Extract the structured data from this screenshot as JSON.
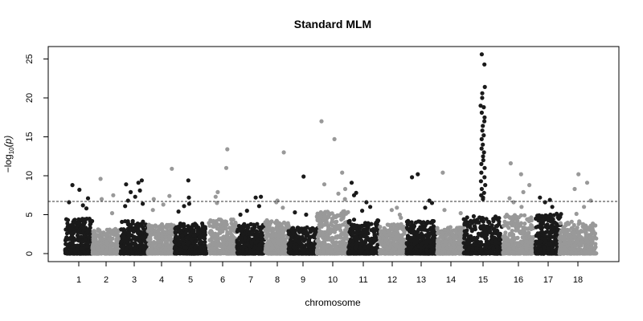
{
  "chart_data": {
    "type": "scatter",
    "title": "Standard MLM",
    "xlabel": "chromosome",
    "ylabel": "−log10(p)",
    "ylabel_parts": {
      "prefix": "−log",
      "subscript": "10",
      "suffix": "(p)"
    },
    "ylim": [
      0,
      27
    ],
    "yticks": [
      0,
      5,
      10,
      15,
      20,
      25
    ],
    "threshold": 6.7,
    "threshold_style": "dashed",
    "grid": false,
    "legend": "none",
    "colors": {
      "odd_chromosomes": "#1a1a1a",
      "even_chromosomes": "#999999",
      "threshold": "#333333"
    },
    "chromosomes": [
      {
        "label": "1",
        "bulk_max": 4.5,
        "highlights": [
          8.8,
          8.2,
          7.1,
          6.6,
          6.2,
          5.8
        ]
      },
      {
        "label": "2",
        "bulk_max": 3.3,
        "highlights": [
          9.6,
          7.5,
          7.0,
          5.2
        ]
      },
      {
        "label": "3",
        "bulk_max": 4.2,
        "highlights": [
          9.4,
          9.1,
          8.9,
          8.1,
          7.9,
          7.3,
          6.8,
          6.4,
          6.1
        ]
      },
      {
        "label": "4",
        "bulk_max": 3.8,
        "highlights": [
          10.9,
          7.4,
          7.0,
          6.3,
          5.6
        ]
      },
      {
        "label": "5",
        "bulk_max": 3.9,
        "highlights": [
          9.4,
          7.2,
          6.4,
          6.1,
          5.4
        ]
      },
      {
        "label": "6",
        "bulk_max": 4.4,
        "highlights": [
          13.4,
          11.0,
          7.9,
          7.3,
          6.5
        ]
      },
      {
        "label": "7",
        "bulk_max": 3.8,
        "highlights": [
          7.3,
          7.2,
          6.1,
          5.5,
          5.0
        ]
      },
      {
        "label": "8",
        "bulk_max": 4.3,
        "highlights": [
          13.0,
          6.8,
          6.6,
          5.9
        ]
      },
      {
        "label": "9",
        "bulk_max": 3.4,
        "highlights": [
          9.9,
          5.3,
          5.0
        ]
      },
      {
        "label": "10",
        "bulk_max": 5.5,
        "highlights": [
          17.0,
          14.7,
          10.4,
          8.9,
          8.3,
          7.7,
          7.0
        ]
      },
      {
        "label": "11",
        "bulk_max": 4.4,
        "highlights": [
          9.1,
          7.8,
          7.5,
          6.6,
          6.0,
          5.5
        ]
      },
      {
        "label": "12",
        "bulk_max": 3.8,
        "highlights": [
          5.9,
          5.6,
          5.0,
          4.6
        ]
      },
      {
        "label": "13",
        "bulk_max": 4.2,
        "highlights": [
          10.2,
          9.8,
          6.8,
          6.5,
          5.9
        ]
      },
      {
        "label": "14",
        "bulk_max": 3.4,
        "highlights": [
          10.4,
          5.6,
          5.2
        ]
      },
      {
        "label": "15",
        "bulk_max": 4.8,
        "highlights": [
          25.6,
          24.3,
          21.4,
          20.6,
          20.0,
          19.0,
          18.8,
          18.1,
          17.5,
          17.0,
          16.4,
          15.8,
          15.2,
          14.7,
          14.0,
          13.5,
          13.0,
          12.5,
          12.0,
          11.5,
          11.0,
          10.4,
          9.8,
          9.3,
          8.8,
          8.3,
          7.8,
          7.5,
          7.2,
          7.0
        ]
      },
      {
        "label": "16",
        "bulk_max": 5.0,
        "highlights": [
          11.6,
          10.2,
          8.8,
          7.9,
          7.1,
          6.6,
          6.0
        ]
      },
      {
        "label": "17",
        "bulk_max": 5.2,
        "highlights": [
          7.2,
          6.9,
          6.6,
          6.0
        ]
      },
      {
        "label": "18",
        "bulk_max": 4.2,
        "highlights": [
          10.2,
          9.1,
          8.3,
          6.8,
          6.0,
          5.1
        ]
      }
    ]
  }
}
